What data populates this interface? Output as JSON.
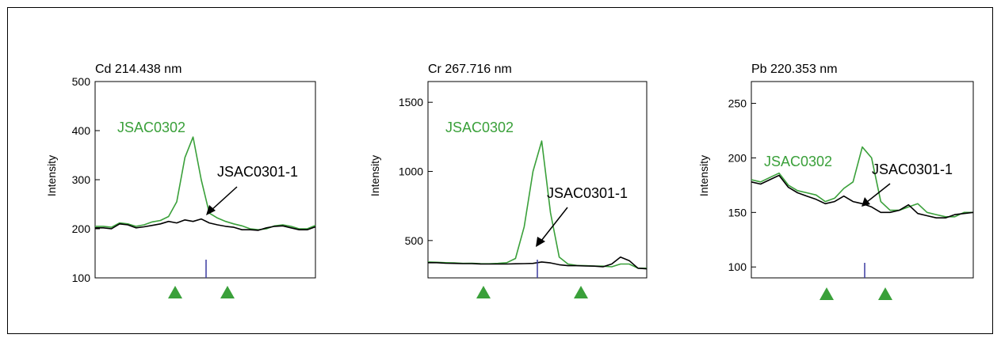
{
  "chart_data": [
    {
      "type": "line",
      "title": "Cd 214.438 nm",
      "ylabel": "Intensity",
      "ylim": [
        100,
        500
      ],
      "yticks": [
        100,
        200,
        300,
        400,
        500
      ],
      "series": [
        {
          "name": "JSAC0302",
          "color": "#3aa03a",
          "y": [
            205,
            205,
            203,
            212,
            210,
            205,
            208,
            214,
            217,
            225,
            255,
            345,
            387,
            300,
            232,
            222,
            215,
            210,
            206,
            200,
            198,
            200,
            206,
            208,
            205,
            200,
            200,
            207
          ]
        },
        {
          "name": "JSAC0301-1",
          "color": "#000000",
          "y": [
            202,
            202,
            200,
            210,
            208,
            202,
            204,
            207,
            210,
            215,
            212,
            218,
            215,
            220,
            212,
            208,
            205,
            203,
            198,
            198,
            197,
            202,
            205,
            206,
            202,
            198,
            198,
            204
          ]
        }
      ],
      "annotations": [
        {
          "text": "JSAC0302",
          "color": "#3aa03a"
        },
        {
          "text": "JSAC0301-1",
          "color": "#000000"
        }
      ]
    },
    {
      "type": "line",
      "title": "Cr 267.716 nm",
      "ylabel": "Intensity",
      "ylim": [
        230,
        1650
      ],
      "yticks": [
        500,
        1000,
        1500
      ],
      "series": [
        {
          "name": "JSAC0302",
          "color": "#3aa03a",
          "y": [
            345,
            343,
            340,
            338,
            335,
            336,
            333,
            332,
            335,
            340,
            370,
            600,
            1000,
            1220,
            700,
            380,
            330,
            320,
            318,
            316,
            315,
            310,
            330,
            330,
            300,
            300
          ]
        },
        {
          "name": "JSAC0301-1",
          "color": "#000000",
          "y": [
            340,
            340,
            336,
            335,
            333,
            333,
            331,
            330,
            330,
            330,
            332,
            333,
            335,
            345,
            338,
            325,
            318,
            318,
            316,
            315,
            310,
            330,
            380,
            355,
            300,
            295
          ]
        }
      ],
      "annotations": [
        {
          "text": "JSAC0302",
          "color": "#3aa03a"
        },
        {
          "text": "JSAC0301-1",
          "color": "#000000"
        }
      ]
    },
    {
      "type": "line",
      "title": "Pb 220.353 nm",
      "ylabel": "Intensity",
      "ylim": [
        90,
        270
      ],
      "yticks": [
        100,
        150,
        200,
        250
      ],
      "series": [
        {
          "name": "JSAC0302",
          "color": "#3aa03a",
          "y": [
            180,
            178,
            182,
            186,
            175,
            170,
            168,
            166,
            160,
            163,
            172,
            178,
            210,
            200,
            160,
            152,
            152,
            155,
            158,
            150,
            148,
            146,
            146,
            150,
            150
          ]
        },
        {
          "name": "JSAC0301-1",
          "color": "#000000",
          "y": [
            178,
            176,
            180,
            184,
            173,
            168,
            165,
            162,
            158,
            160,
            165,
            160,
            158,
            155,
            150,
            150,
            152,
            157,
            149,
            147,
            145,
            145,
            148,
            149,
            150
          ]
        }
      ],
      "annotations": [
        {
          "text": "JSAC0302",
          "color": "#3aa03a"
        },
        {
          "text": "JSAC0301-1",
          "color": "#000000"
        }
      ]
    }
  ]
}
